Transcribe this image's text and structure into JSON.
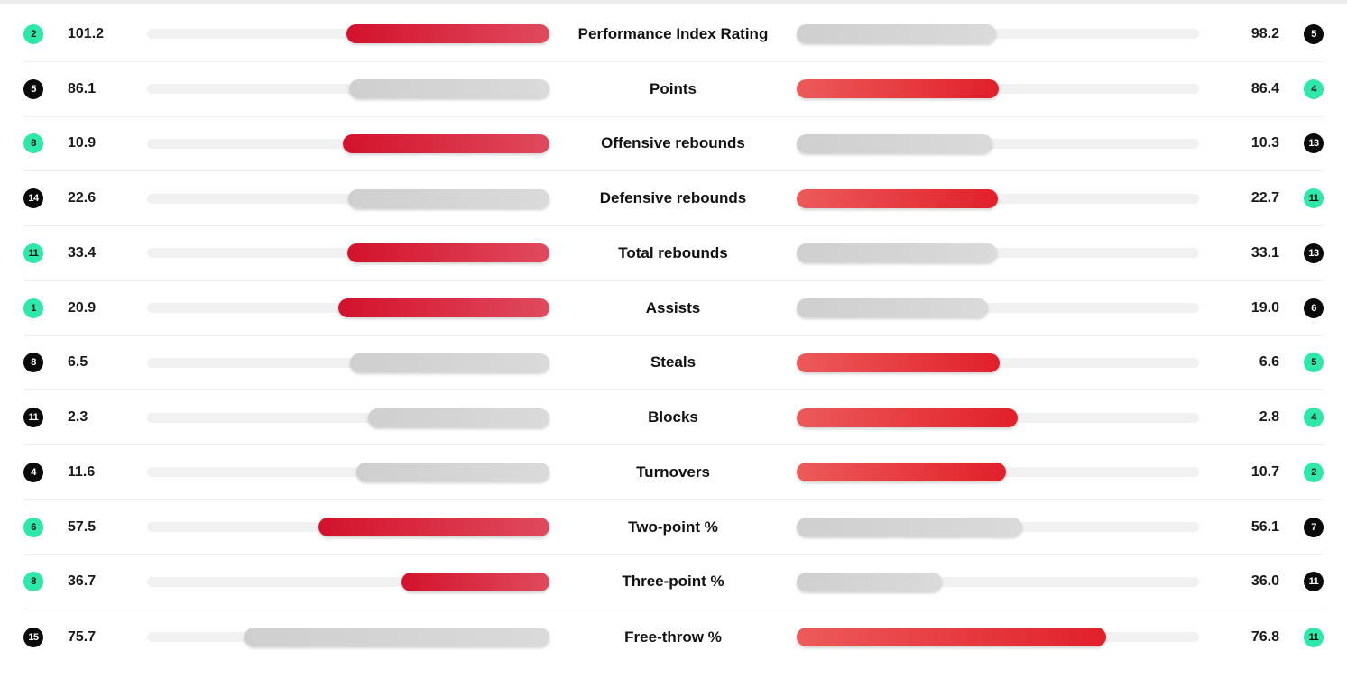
{
  "stats": [
    {
      "label": "Performance Index Rating",
      "home_value": "101.2",
      "away_value": "98.2",
      "home_rank": "2",
      "away_rank": "5",
      "home_rank_color": "good",
      "away_rank_color": "bad",
      "home_bar_fraction": 0.505,
      "away_bar_fraction": 0.495,
      "home_bar_color": "win",
      "away_bar_color": "grey"
    },
    {
      "label": "Points",
      "home_value": "86.1",
      "away_value": "86.4",
      "home_rank": "5",
      "away_rank": "4",
      "home_rank_color": "bad",
      "away_rank_color": "good",
      "home_bar_fraction": 0.498,
      "away_bar_fraction": 0.502,
      "home_bar_color": "grey",
      "away_bar_color": "win"
    },
    {
      "label": "Offensive rebounds",
      "home_value": "10.9",
      "away_value": "10.3",
      "home_rank": "8",
      "away_rank": "13",
      "home_rank_color": "good",
      "away_rank_color": "bad",
      "home_bar_fraction": 0.514,
      "away_bar_fraction": 0.486,
      "home_bar_color": "win",
      "away_bar_color": "grey"
    },
    {
      "label": "Defensive rebounds",
      "home_value": "22.6",
      "away_value": "22.7",
      "home_rank": "14",
      "away_rank": "11",
      "home_rank_color": "bad",
      "away_rank_color": "good",
      "home_bar_fraction": 0.499,
      "away_bar_fraction": 0.501,
      "home_bar_color": "grey",
      "away_bar_color": "win"
    },
    {
      "label": "Total rebounds",
      "home_value": "33.4",
      "away_value": "33.1",
      "home_rank": "11",
      "away_rank": "13",
      "home_rank_color": "good",
      "away_rank_color": "bad",
      "home_bar_fraction": 0.502,
      "away_bar_fraction": 0.498,
      "home_bar_color": "win",
      "away_bar_color": "grey"
    },
    {
      "label": "Assists",
      "home_value": "20.9",
      "away_value": "19.0",
      "home_rank": "1",
      "away_rank": "6",
      "home_rank_color": "good",
      "away_rank_color": "bad",
      "home_bar_fraction": 0.524,
      "away_bar_fraction": 0.476,
      "home_bar_color": "win",
      "away_bar_color": "grey"
    },
    {
      "label": "Steals",
      "home_value": "6.5",
      "away_value": "6.6",
      "home_rank": "8",
      "away_rank": "5",
      "home_rank_color": "bad",
      "away_rank_color": "good",
      "home_bar_fraction": 0.496,
      "away_bar_fraction": 0.504,
      "home_bar_color": "grey",
      "away_bar_color": "win"
    },
    {
      "label": "Blocks",
      "home_value": "2.3",
      "away_value": "2.8",
      "home_rank": "11",
      "away_rank": "4",
      "home_rank_color": "bad",
      "away_rank_color": "good",
      "home_bar_fraction": 0.451,
      "away_bar_fraction": 0.549,
      "home_bar_color": "grey",
      "away_bar_color": "win"
    },
    {
      "label": "Turnovers",
      "home_value": "11.6",
      "away_value": "10.7",
      "home_rank": "4",
      "away_rank": "2",
      "home_rank_color": "bad",
      "away_rank_color": "good",
      "home_bar_fraction": 0.48,
      "away_bar_fraction": 0.52,
      "home_bar_color": "grey",
      "away_bar_color": "win"
    },
    {
      "label": "Two-point %",
      "home_value": "57.5",
      "away_value": "56.1",
      "home_rank": "6",
      "away_rank": "7",
      "home_rank_color": "good",
      "away_rank_color": "bad",
      "home_bar_fraction": 0.575,
      "away_bar_fraction": 0.561,
      "home_bar_color": "win",
      "away_bar_color": "grey"
    },
    {
      "label": "Three-point %",
      "home_value": "36.7",
      "away_value": "36.0",
      "home_rank": "8",
      "away_rank": "11",
      "home_rank_color": "good",
      "away_rank_color": "bad",
      "home_bar_fraction": 0.367,
      "away_bar_fraction": 0.36,
      "home_bar_color": "win",
      "away_bar_color": "grey"
    },
    {
      "label": "Free-throw %",
      "home_value": "75.7",
      "away_value": "76.8",
      "home_rank": "15",
      "away_rank": "11",
      "home_rank_color": "bad",
      "away_rank_color": "good",
      "home_bar_fraction": 0.757,
      "away_bar_fraction": 0.768,
      "home_bar_color": "grey",
      "away_bar_color": "win"
    }
  ],
  "colors": {
    "rank_good": "#2de8a8",
    "rank_bad": "#0a0a0a",
    "bar_win_home": "#d3122c",
    "bar_win_away": "#e1202a",
    "bar_grey": "#d4d4d4",
    "track": "#f1f1f1"
  }
}
